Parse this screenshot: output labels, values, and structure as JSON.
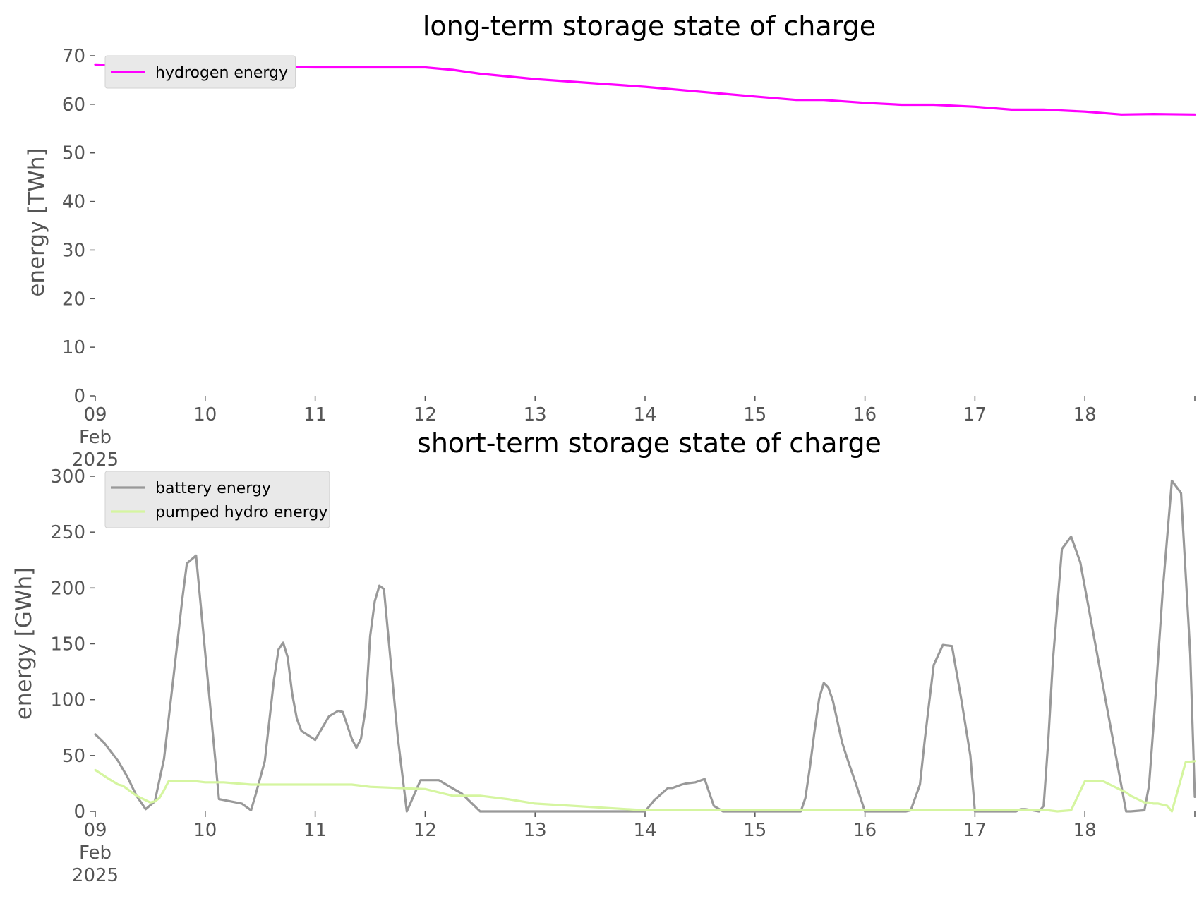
{
  "chart_data": [
    {
      "type": "line",
      "title": "long-term storage state of charge",
      "ylabel": "energy [TWh]",
      "xlabel": "",
      "ylim": [
        0,
        70
      ],
      "yticks": [
        0,
        10,
        20,
        30,
        40,
        50,
        60,
        70
      ],
      "xlim": [
        "2025-02-09",
        "2025-02-19"
      ],
      "xticks": [
        {
          "date": "2025-02-09",
          "lines": [
            "09",
            "Feb",
            "2025"
          ]
        },
        {
          "date": "2025-02-10",
          "lines": [
            "10"
          ]
        },
        {
          "date": "2025-02-11",
          "lines": [
            "11"
          ]
        },
        {
          "date": "2025-02-12",
          "lines": [
            "12"
          ]
        },
        {
          "date": "2025-02-13",
          "lines": [
            "13"
          ]
        },
        {
          "date": "2025-02-14",
          "lines": [
            "14"
          ]
        },
        {
          "date": "2025-02-15",
          "lines": [
            "15"
          ]
        },
        {
          "date": "2025-02-16",
          "lines": [
            "16"
          ]
        },
        {
          "date": "2025-02-17",
          "lines": [
            "17"
          ]
        },
        {
          "date": "2025-02-18",
          "lines": [
            "18"
          ]
        },
        {
          "date": "2025-02-19",
          "lines": [
            ""
          ]
        }
      ],
      "grid": false,
      "legend_position": "top-left",
      "series": [
        {
          "name": "hydrogen energy",
          "color": "#ff00ff",
          "x": [
            "2025-02-09 00:00",
            "2025-02-09 12:00",
            "2025-02-10 00:00",
            "2025-02-10 12:00",
            "2025-02-11 00:00",
            "2025-02-11 12:00",
            "2025-02-12 00:00",
            "2025-02-12 06:00",
            "2025-02-12 12:00",
            "2025-02-13 00:00",
            "2025-02-13 12:00",
            "2025-02-14 00:00",
            "2025-02-14 12:00",
            "2025-02-15 00:00",
            "2025-02-15 09:00",
            "2025-02-15 15:00",
            "2025-02-16 00:00",
            "2025-02-16 08:00",
            "2025-02-16 15:00",
            "2025-02-17 00:00",
            "2025-02-17 08:00",
            "2025-02-17 15:00",
            "2025-02-18 00:00",
            "2025-02-18 08:00",
            "2025-02-18 15:00",
            "2025-02-19 00:00"
          ],
          "y": [
            68.2,
            67.8,
            67.7,
            67.7,
            67.6,
            67.6,
            67.6,
            67.1,
            66.3,
            65.2,
            64.4,
            63.6,
            62.6,
            61.6,
            60.9,
            60.9,
            60.3,
            59.9,
            59.9,
            59.5,
            58.9,
            58.9,
            58.5,
            57.9,
            58.0,
            57.9
          ]
        }
      ]
    },
    {
      "type": "line",
      "title": "short-term storage state of charge",
      "ylabel": "energy [GWh]",
      "xlabel": "",
      "ylim": [
        0,
        300
      ],
      "yticks": [
        0,
        50,
        100,
        150,
        200,
        250,
        300
      ],
      "xlim": [
        "2025-02-09",
        "2025-02-19"
      ],
      "xticks": [
        {
          "date": "2025-02-09",
          "lines": [
            "09",
            "Feb",
            "2025"
          ]
        },
        {
          "date": "2025-02-10",
          "lines": [
            "10"
          ]
        },
        {
          "date": "2025-02-11",
          "lines": [
            "11"
          ]
        },
        {
          "date": "2025-02-12",
          "lines": [
            "12"
          ]
        },
        {
          "date": "2025-02-13",
          "lines": [
            "13"
          ]
        },
        {
          "date": "2025-02-14",
          "lines": [
            "14"
          ]
        },
        {
          "date": "2025-02-15",
          "lines": [
            "15"
          ]
        },
        {
          "date": "2025-02-16",
          "lines": [
            "16"
          ]
        },
        {
          "date": "2025-02-17",
          "lines": [
            "17"
          ]
        },
        {
          "date": "2025-02-18",
          "lines": [
            "18"
          ]
        },
        {
          "date": "2025-02-19",
          "lines": [
            ""
          ]
        }
      ],
      "grid": false,
      "legend_position": "top-left",
      "series": [
        {
          "name": "battery energy",
          "color": "#999999",
          "x": [
            "2025-02-09 00:00",
            "2025-02-09 02:00",
            "2025-02-09 05:00",
            "2025-02-09 07:00",
            "2025-02-09 09:00",
            "2025-02-09 11:00",
            "2025-02-09 13:00",
            "2025-02-09 15:00",
            "2025-02-09 17:00",
            "2025-02-09 19:00",
            "2025-02-09 20:00",
            "2025-02-09 22:00",
            "2025-02-10 03:00",
            "2025-02-10 08:00",
            "2025-02-10 10:00",
            "2025-02-10 11:00",
            "2025-02-10 13:00",
            "2025-02-10 15:00",
            "2025-02-10 16:00",
            "2025-02-10 17:00",
            "2025-02-10 18:00",
            "2025-02-10 19:00",
            "2025-02-10 20:00",
            "2025-02-10 21:00",
            "2025-02-11 00:00",
            "2025-02-11 03:00",
            "2025-02-11 05:00",
            "2025-02-11 06:00",
            "2025-02-11 08:00",
            "2025-02-11 09:00",
            "2025-02-11 10:00",
            "2025-02-11 11:00",
            "2025-02-11 12:00",
            "2025-02-11 13:00",
            "2025-02-11 14:00",
            "2025-02-11 15:00",
            "2025-02-11 18:00",
            "2025-02-11 20:00",
            "2025-02-11 23:00",
            "2025-02-12 03:00",
            "2025-02-12 05:00",
            "2025-02-12 08:00",
            "2025-02-12 12:00",
            "2025-02-12 18:00",
            "2025-02-12 21:00",
            "2025-02-13 00:00",
            "2025-02-14 00:00",
            "2025-02-14 02:00",
            "2025-02-14 05:00",
            "2025-02-14 06:00",
            "2025-02-14 08:00",
            "2025-02-14 09:00",
            "2025-02-14 11:00",
            "2025-02-14 13:00",
            "2025-02-14 15:00",
            "2025-02-14 17:00",
            "2025-02-14 19:00",
            "2025-02-15 00:00",
            "2025-02-15 10:00",
            "2025-02-15 11:00",
            "2025-02-15 12:00",
            "2025-02-15 13:00",
            "2025-02-15 14:00",
            "2025-02-15 15:00",
            "2025-02-15 16:00",
            "2025-02-15 17:00",
            "2025-02-15 19:00",
            "2025-02-15 20:00",
            "2025-02-15 22:00",
            "2025-02-16 00:00",
            "2025-02-16 09:00",
            "2025-02-16 10:00",
            "2025-02-16 12:00",
            "2025-02-16 13:00",
            "2025-02-16 14:00",
            "2025-02-16 15:00",
            "2025-02-16 17:00",
            "2025-02-16 19:00",
            "2025-02-16 21:00",
            "2025-02-16 23:00",
            "2025-02-17 00:00",
            "2025-02-17 06:00",
            "2025-02-17 09:00",
            "2025-02-17 10:00",
            "2025-02-17 11:00",
            "2025-02-17 14:00",
            "2025-02-17 15:00",
            "2025-02-17 16:00",
            "2025-02-17 17:00",
            "2025-02-17 19:00",
            "2025-02-17 21:00",
            "2025-02-17 23:00",
            "2025-02-18 09:00",
            "2025-02-18 10:00",
            "2025-02-18 13:00",
            "2025-02-18 14:00",
            "2025-02-18 15:00",
            "2025-02-18 16:00",
            "2025-02-18 17:00",
            "2025-02-18 19:00",
            "2025-02-18 21:00",
            "2025-02-18 23:00",
            "2025-02-19 00:00"
          ],
          "y": [
            69,
            61,
            45,
            31,
            14,
            2,
            9,
            47,
            118,
            190,
            222,
            229,
            11,
            7,
            1,
            15,
            45,
            118,
            145,
            151,
            138,
            105,
            83,
            72,
            64,
            85,
            90,
            89,
            65,
            57,
            65,
            92,
            157,
            188,
            202,
            199,
            67,
            0,
            28,
            28,
            23,
            16,
            0,
            0,
            0,
            0,
            0,
            10,
            21,
            21,
            24,
            25,
            26,
            29,
            5,
            0,
            0,
            0,
            0,
            12,
            40,
            72,
            101,
            115,
            111,
            99,
            62,
            49,
            25,
            0,
            0,
            1,
            24,
            62,
            97,
            131,
            149,
            148,
            101,
            50,
            0,
            0,
            0,
            2,
            2,
            0,
            5,
            63,
            134,
            235,
            246,
            223,
            0,
            0,
            1,
            23,
            78,
            138,
            198,
            296,
            285,
            141,
            13
          ]
        },
        {
          "name": "pumped hydro energy",
          "color": "#d5f5a0",
          "x": [
            "2025-02-09 00:00",
            "2025-02-09 03:00",
            "2025-02-09 05:00",
            "2025-02-09 06:00",
            "2025-02-09 08:00",
            "2025-02-09 09:00",
            "2025-02-09 11:00",
            "2025-02-09 12:00",
            "2025-02-09 13:00",
            "2025-02-09 14:00",
            "2025-02-09 15:00",
            "2025-02-09 16:00",
            "2025-02-09 18:00",
            "2025-02-09 22:00",
            "2025-02-10 00:00",
            "2025-02-10 04:00",
            "2025-02-10 10:00",
            "2025-02-11 00:00",
            "2025-02-11 05:00",
            "2025-02-11 08:00",
            "2025-02-11 12:00",
            "2025-02-11 18:00",
            "2025-02-12 00:00",
            "2025-02-12 06:00",
            "2025-02-12 12:00",
            "2025-02-12 18:00",
            "2025-02-13 00:00",
            "2025-02-14 00:00",
            "2025-02-15 00:00",
            "2025-02-16 00:00",
            "2025-02-17 00:00",
            "2025-02-17 14:00",
            "2025-02-17 16:00",
            "2025-02-17 18:00",
            "2025-02-17 21:00",
            "2025-02-18 00:00",
            "2025-02-18 04:00",
            "2025-02-18 07:00",
            "2025-02-18 09:00",
            "2025-02-18 10:00",
            "2025-02-18 13:00",
            "2025-02-18 14:00",
            "2025-02-18 15:00",
            "2025-02-18 16:00",
            "2025-02-18 18:00",
            "2025-02-18 19:00",
            "2025-02-18 22:00",
            "2025-02-19 00:00"
          ],
          "y": [
            37,
            29,
            24,
            23,
            17,
            14,
            10,
            8,
            9,
            12,
            19,
            27,
            27,
            27,
            26,
            26,
            24,
            24,
            24,
            24,
            22,
            21,
            20,
            14,
            14,
            11,
            7,
            1,
            1,
            1,
            1,
            1,
            1,
            0,
            1,
            27,
            27,
            21,
            17,
            14,
            8,
            8,
            7,
            7,
            5,
            0,
            44,
            45
          ]
        }
      ]
    }
  ]
}
